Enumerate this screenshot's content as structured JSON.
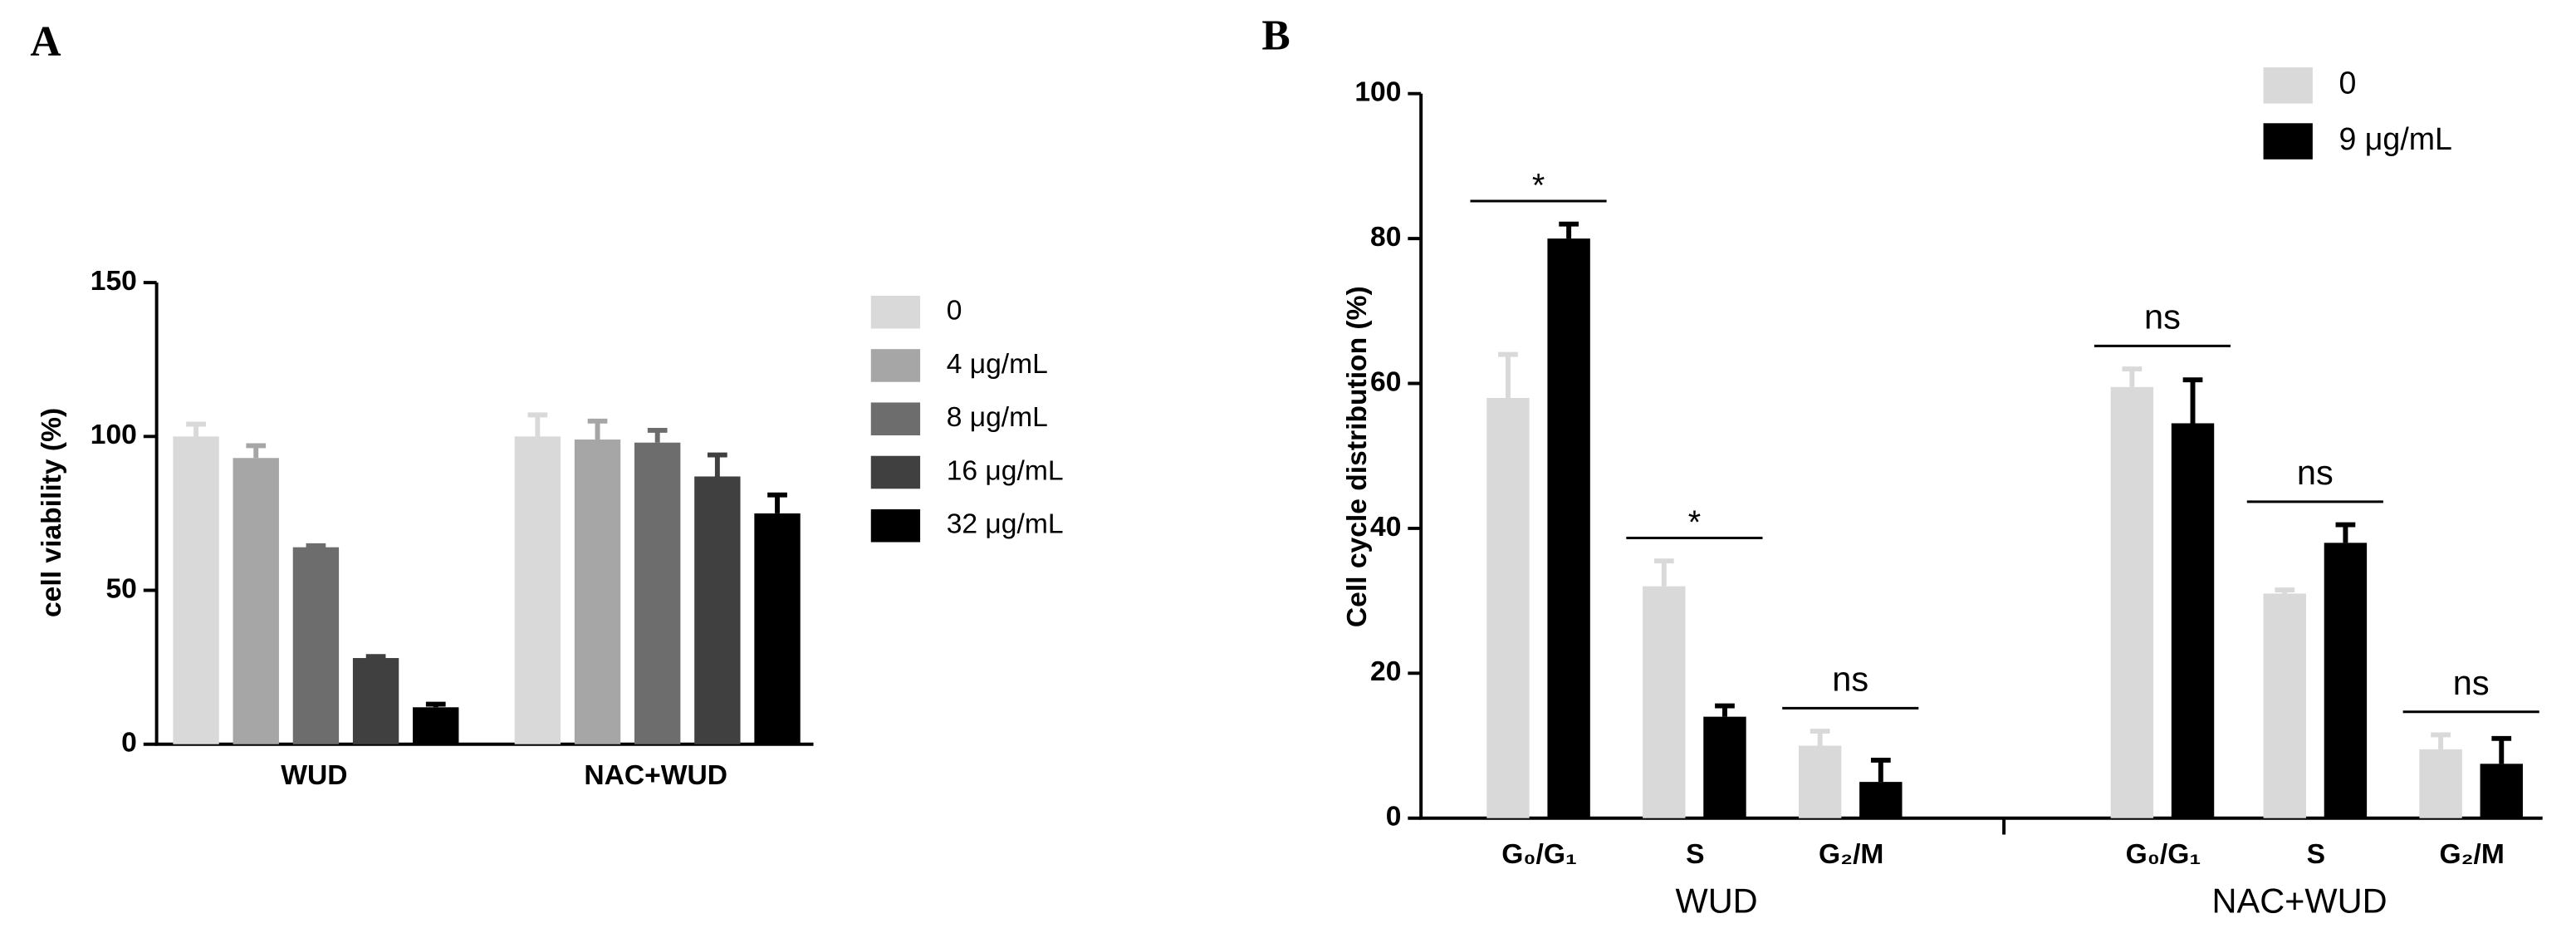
{
  "chart_data": [
    {
      "type": "bar",
      "label": "A",
      "ylabel": "cell viability (%)",
      "categories": [
        "WUD",
        "NAC+WUD"
      ],
      "series": [
        {
          "name": "0",
          "color": "#d9d9d9",
          "values": [
            100,
            100
          ],
          "errors": [
            4,
            7
          ]
        },
        {
          "name": "4 μg/mL",
          "color": "#a6a6a6",
          "values": [
            93,
            99
          ],
          "errors": [
            4,
            6
          ]
        },
        {
          "name": "8 μg/mL",
          "color": "#6d6d6d",
          "values": [
            64,
            98
          ],
          "errors": [
            0.5,
            4
          ]
        },
        {
          "name": "16 μg/mL",
          "color": "#404040",
          "values": [
            28,
            87
          ],
          "errors": [
            0.5,
            7
          ]
        },
        {
          "name": "32 μg/mL",
          "color": "#000000",
          "values": [
            12,
            75
          ],
          "errors": [
            1,
            6
          ]
        }
      ],
      "ylim": [
        0,
        150
      ],
      "yticks": [
        0,
        50,
        100,
        150
      ],
      "legend": "right"
    },
    {
      "type": "bar",
      "label": "B",
      "ylabel": "Cell cycle distribution (%)",
      "categories": [
        "G₀/G₁",
        "S",
        "G₂/M",
        "G₀/G₁",
        "S",
        "G₂/M"
      ],
      "groups": [
        "WUD",
        "NAC+WUD"
      ],
      "series": [
        {
          "name": "0",
          "color": "#d9d9d9",
          "values": [
            58,
            32,
            10,
            59.5,
            31,
            9.5
          ],
          "errors": [
            6,
            3.5,
            2,
            2.5,
            0.5,
            2
          ]
        },
        {
          "name": "9 μg/mL",
          "color": "#000000",
          "values": [
            80,
            14,
            5,
            54.5,
            38,
            7.5
          ],
          "errors": [
            2,
            1.5,
            3,
            6,
            2.5,
            3.5
          ]
        }
      ],
      "annotations": [
        "*",
        "*",
        "ns",
        "ns",
        "ns",
        "ns"
      ],
      "ylim": [
        0,
        100
      ],
      "yticks": [
        0,
        20,
        40,
        60,
        80,
        100
      ],
      "legend": "upper right"
    }
  ]
}
